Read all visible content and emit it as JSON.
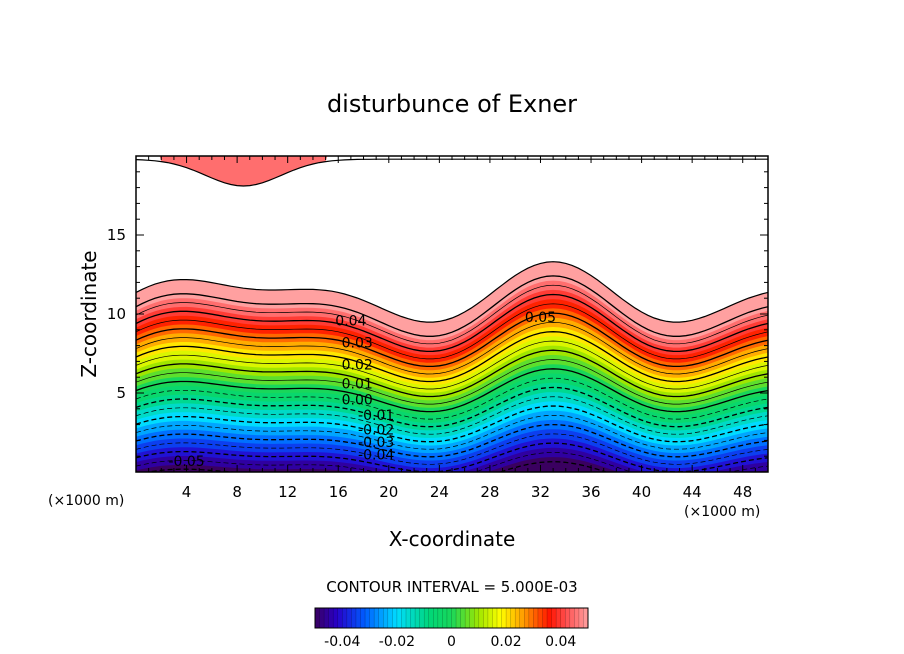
{
  "chart_data": {
    "type": "contour",
    "title": "disturbunce of Exner",
    "xlabel": "X-coordinate",
    "ylabel": "Z-coordinate",
    "x_unit": "(×1000 m)",
    "xlim": [
      0,
      50
    ],
    "ylim": [
      0,
      20
    ],
    "x_ticks": [
      "4",
      "8",
      "12",
      "16",
      "20",
      "24",
      "28",
      "32",
      "36",
      "40",
      "44",
      "48"
    ],
    "y_ticks": [
      "5",
      "10",
      "15"
    ],
    "contour_interval_text": "CONTOUR INTERVAL = 5.000E-03",
    "contour_labels": [
      {
        "text": "0.05",
        "x": 32,
        "z": 9.8
      },
      {
        "text": "0.04",
        "x": 17,
        "z": 9.6
      },
      {
        "text": "0.03",
        "x": 17.5,
        "z": 8.2
      },
      {
        "text": "0.02",
        "x": 17.5,
        "z": 6.8
      },
      {
        "text": "0.01",
        "x": 17.5,
        "z": 5.6
      },
      {
        "text": "0.00",
        "x": 17.5,
        "z": 4.6
      },
      {
        "text": "-0.01",
        "x": 19,
        "z": 3.6
      },
      {
        "text": "-0.02",
        "x": 19,
        "z": 2.7
      },
      {
        "text": "-0.03",
        "x": 19,
        "z": 1.9
      },
      {
        "text": "-0.04",
        "x": 19,
        "z": 1.1
      },
      {
        "text": "-0.05",
        "x": 4,
        "z": 0.7
      }
    ],
    "contour_levels": [
      -0.05,
      -0.045,
      -0.04,
      -0.035,
      -0.03,
      -0.025,
      -0.02,
      -0.015,
      -0.01,
      -0.005,
      0,
      0.005,
      0.01,
      0.015,
      0.02,
      0.025,
      0.03,
      0.035,
      0.04,
      0.045,
      0.05
    ],
    "colorbar": {
      "range": [
        -0.05,
        0.05
      ],
      "tick_labels": [
        "-0.04",
        "-0.02",
        "0",
        "0.02",
        "0.04"
      ],
      "tick_values": [
        -0.04,
        -0.02,
        0,
        0.02,
        0.04
      ]
    },
    "colors": {
      "negative_min": "#3a0060",
      "zero": "#19d75a",
      "positive_max": "#ff9a9a"
    }
  }
}
